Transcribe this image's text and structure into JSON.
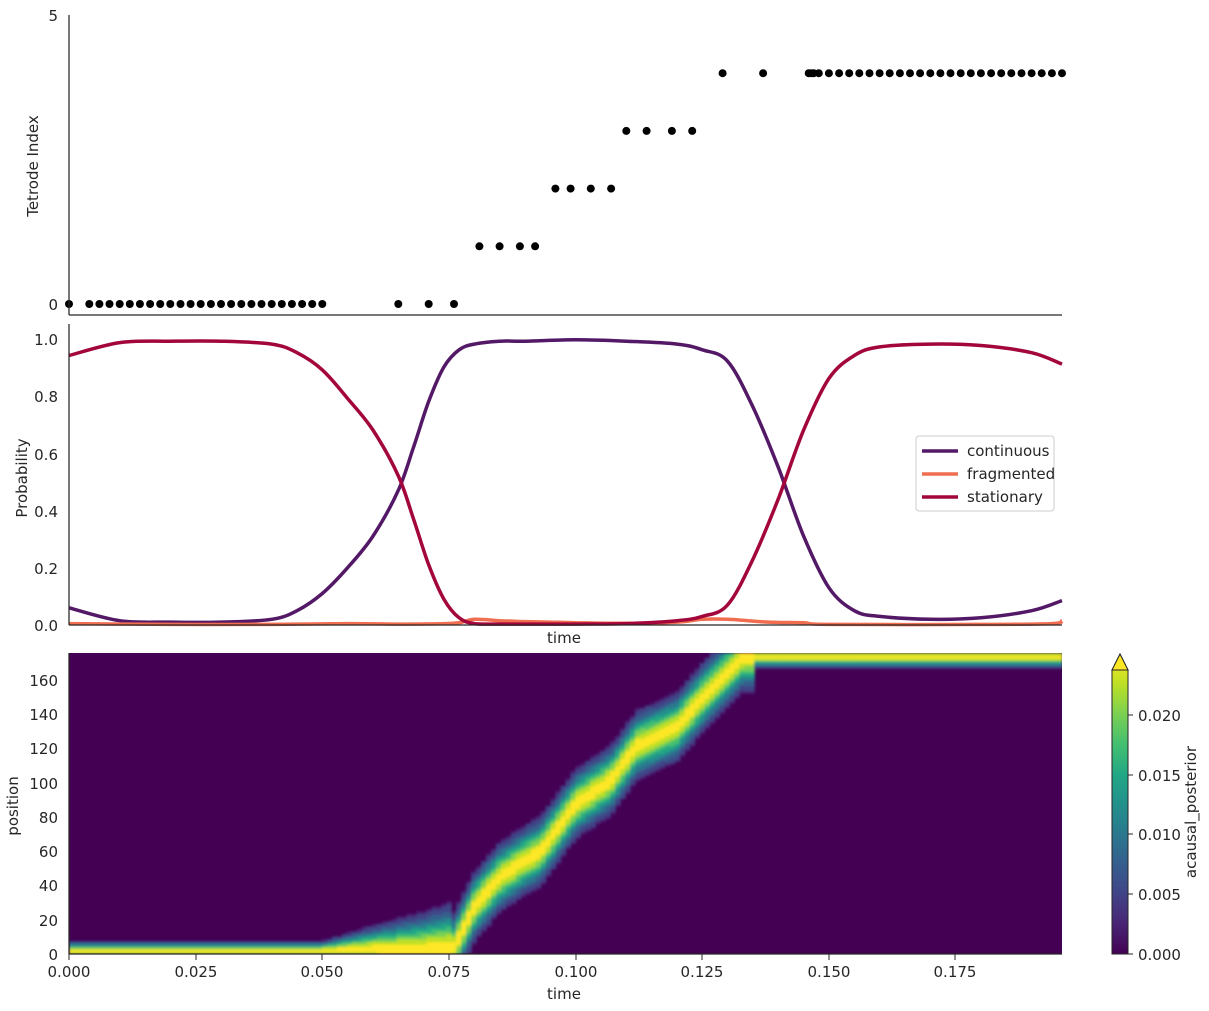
{
  "chart_data": [
    {
      "type": "scatter",
      "ylabel": "Tetrode Index",
      "ylim": [
        -0.2,
        5
      ],
      "y_ticks": [
        "0",
        "5"
      ],
      "marker_color": "#000000",
      "spikes": [
        {
          "tetrode": 0,
          "times": [
            0.0,
            0.004,
            0.006,
            0.008,
            0.01,
            0.012,
            0.014,
            0.016,
            0.018,
            0.02,
            0.022,
            0.024,
            0.026,
            0.028,
            0.03,
            0.032,
            0.034,
            0.036,
            0.038,
            0.04,
            0.042,
            0.044,
            0.046,
            0.048,
            0.05,
            0.065,
            0.071,
            0.076
          ]
        },
        {
          "tetrode": 1,
          "times": [
            0.081,
            0.085,
            0.089,
            0.092
          ]
        },
        {
          "tetrode": 2,
          "times": [
            0.096,
            0.099,
            0.103,
            0.107
          ]
        },
        {
          "tetrode": 3,
          "times": [
            0.11,
            0.114,
            0.119,
            0.123
          ]
        },
        {
          "tetrode": 4,
          "times": [
            0.129,
            0.137,
            0.146,
            0.1465,
            0.147,
            0.148,
            0.15,
            0.152,
            0.154,
            0.156,
            0.158,
            0.16,
            0.162,
            0.164,
            0.166,
            0.168,
            0.17,
            0.172,
            0.174,
            0.176,
            0.178,
            0.18,
            0.182,
            0.184,
            0.186,
            0.188,
            0.19,
            0.192,
            0.194,
            0.196
          ]
        }
      ]
    },
    {
      "type": "line",
      "xlabel": "time",
      "ylabel": "Probability",
      "ylim": [
        0,
        1.05
      ],
      "y_ticks": [
        "0.0",
        "0.2",
        "0.4",
        "0.6",
        "0.8",
        "1.0"
      ],
      "legend_position": "center-right",
      "series": [
        {
          "name": "continuous",
          "color": "#531966",
          "x": [
            0,
            0.01,
            0.02,
            0.03,
            0.04,
            0.045,
            0.05,
            0.055,
            0.06,
            0.065,
            0.068,
            0.071,
            0.074,
            0.077,
            0.08,
            0.085,
            0.09,
            0.1,
            0.11,
            0.12,
            0.125,
            0.13,
            0.135,
            0.14,
            0.145,
            0.15,
            0.155,
            0.16,
            0.17,
            0.18,
            0.19,
            0.196
          ],
          "y": [
            0.06,
            0.015,
            0.01,
            0.01,
            0.02,
            0.05,
            0.11,
            0.2,
            0.31,
            0.47,
            0.62,
            0.78,
            0.9,
            0.96,
            0.98,
            0.99,
            0.99,
            0.995,
            0.99,
            0.98,
            0.96,
            0.92,
            0.76,
            0.55,
            0.31,
            0.13,
            0.05,
            0.03,
            0.02,
            0.025,
            0.05,
            0.085
          ]
        },
        {
          "name": "fragmented",
          "color": "#f06d4f",
          "x": [
            0,
            0.02,
            0.04,
            0.055,
            0.065,
            0.072,
            0.077,
            0.08,
            0.085,
            0.09,
            0.095,
            0.1,
            0.11,
            0.12,
            0.125,
            0.13,
            0.138,
            0.145,
            0.15,
            0.18,
            0.194,
            0.196
          ],
          "y": [
            0.005,
            0.002,
            0.002,
            0.005,
            0.003,
            0.004,
            0.008,
            0.02,
            0.015,
            0.012,
            0.01,
            0.008,
            0.006,
            0.01,
            0.02,
            0.02,
            0.01,
            0.008,
            0.002,
            0.002,
            0.005,
            0.015
          ]
        },
        {
          "name": "stationary",
          "color": "#a2063b",
          "x": [
            0,
            0.01,
            0.02,
            0.03,
            0.04,
            0.045,
            0.05,
            0.055,
            0.06,
            0.065,
            0.068,
            0.071,
            0.074,
            0.077,
            0.08,
            0.085,
            0.09,
            0.1,
            0.11,
            0.12,
            0.125,
            0.13,
            0.135,
            0.14,
            0.145,
            0.15,
            0.155,
            0.16,
            0.17,
            0.18,
            0.19,
            0.196
          ],
          "y": [
            0.94,
            0.985,
            0.99,
            0.99,
            0.98,
            0.95,
            0.89,
            0.79,
            0.68,
            0.52,
            0.37,
            0.21,
            0.09,
            0.025,
            0.005,
            0.003,
            0.003,
            0.003,
            0.005,
            0.015,
            0.03,
            0.07,
            0.23,
            0.44,
            0.68,
            0.86,
            0.94,
            0.97,
            0.98,
            0.975,
            0.95,
            0.91
          ]
        }
      ]
    },
    {
      "type": "heatmap",
      "xlabel": "time",
      "ylabel": "position",
      "xlim": [
        0,
        0.196
      ],
      "ylim": [
        0,
        176
      ],
      "x_ticks": [
        "0.000",
        "0.025",
        "0.050",
        "0.075",
        "0.100",
        "0.125",
        "0.150",
        "0.175"
      ],
      "y_ticks": [
        "0",
        "20",
        "40",
        "60",
        "80",
        "100",
        "120",
        "140",
        "160"
      ],
      "colorbar": {
        "label": "acausal_posterior",
        "range": [
          0,
          0.024
        ],
        "extend": "max",
        "ticks": [
          "0.000",
          "0.005",
          "0.010",
          "0.015",
          "0.020"
        ],
        "colormap": "viridis"
      },
      "posterior_peak": {
        "time": [
          0,
          0.05,
          0.06,
          0.07,
          0.076,
          0.08,
          0.085,
          0.09,
          0.093,
          0.1,
          0.107,
          0.112,
          0.12,
          0.125,
          0.13,
          0.133,
          0.14,
          0.15,
          0.196
        ],
        "position": [
          2,
          2,
          3,
          3,
          4,
          28,
          45,
          55,
          60,
          88,
          102,
          122,
          133,
          150,
          165,
          174,
          174,
          174,
          174
        ]
      }
    }
  ]
}
